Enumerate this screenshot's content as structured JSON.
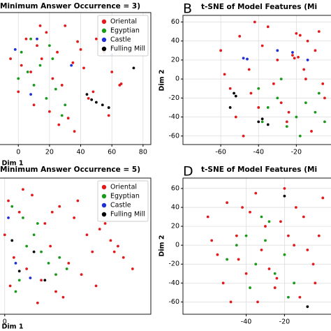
{
  "chart_data": [
    {
      "type": "scatter",
      "title": "Minimum Answer Occurrence = 3)",
      "xlabel": "Dim 1",
      "xlim": [
        -14,
        85
      ],
      "ylim": [
        -50,
        50
      ],
      "xticks": [
        0,
        20,
        40,
        60,
        80
      ],
      "yticks": [],
      "grid": true,
      "legend": "upper right",
      "series": [
        {
          "name": "Oriental",
          "color": "#e31a1c",
          "x": [
            5,
            12,
            18,
            25,
            30,
            38,
            2,
            8,
            15,
            22,
            28,
            35,
            42,
            48,
            55,
            60,
            10,
            20,
            32,
            45,
            50,
            -5,
            0,
            14,
            26,
            40,
            58,
            36,
            65,
            66
          ],
          "values": [
            30,
            25,
            35,
            20,
            40,
            28,
            10,
            5,
            15,
            0,
            -5,
            12,
            8,
            -10,
            20,
            5,
            -20,
            -25,
            -30,
            -15,
            30,
            15,
            -10,
            40,
            -35,
            22,
            -28,
            -40,
            -5,
            -4
          ]
        },
        {
          "name": "Egyptian",
          "color": "#1a9a1a",
          "x": [
            2,
            6,
            10,
            14,
            18,
            20,
            24,
            30,
            0,
            8,
            22,
            28
          ],
          "values": [
            20,
            5,
            -5,
            10,
            -15,
            25,
            -8,
            -20,
            0,
            30,
            15,
            -28
          ]
        },
        {
          "name": "Castle",
          "color": "#1f2fd6",
          "x": [
            -2,
            12,
            34,
            60,
            8
          ],
          "values": [
            22,
            30,
            10,
            18,
            -12
          ]
        },
        {
          "name": "Fulling Mill",
          "color": "#000000",
          "x": [
            44,
            47,
            50,
            54,
            58,
            74
          ],
          "values": [
            -12,
            -16,
            -18,
            -20,
            -22,
            8
          ]
        }
      ]
    },
    {
      "type": "scatter",
      "title": "t-SNE of Model Features (Mi",
      "panel_label": "B",
      "ylabel": "Dim 2",
      "xlim": [
        -80,
        5
      ],
      "ylim": [
        -69,
        67
      ],
      "xticks": [
        -60,
        -40,
        -20
      ],
      "yticks": [
        -60,
        -40,
        -20,
        0,
        20,
        40,
        60
      ],
      "grid": true,
      "series": [
        {
          "name": "Oriental",
          "color": "#e31a1c",
          "x": [
            -60,
            -55,
            -50,
            -45,
            -40,
            -35,
            -30,
            -25,
            -20,
            -18,
            -15,
            -10,
            -5,
            -52,
            -42,
            -32,
            -22,
            -12,
            -8,
            -48,
            -38,
            -28,
            -16,
            -6,
            -58,
            -44,
            -24,
            -14,
            -19,
            -21
          ],
          "values": [
            30,
            -10,
            45,
            10,
            -30,
            55,
            20,
            -45,
            48,
            46,
            0,
            30,
            -20,
            -40,
            60,
            -5,
            25,
            -55,
            50,
            -60,
            35,
            -25,
            10,
            -5,
            5,
            -15,
            -35,
            40,
            23,
            22
          ]
        },
        {
          "name": "Egyptian",
          "color": "#1a9a1a",
          "x": [
            -40,
            -35,
            -30,
            -25,
            -20,
            -15,
            -10,
            -5,
            -28,
            -18,
            -8,
            -38
          ],
          "values": [
            -10,
            -30,
            -20,
            -50,
            -40,
            -25,
            -35,
            -45,
            0,
            -60,
            -15,
            -45
          ]
        },
        {
          "name": "Castle",
          "color": "#1f2fd6",
          "x": [
            -48,
            -46,
            -30,
            -22,
            -14
          ],
          "values": [
            22,
            21,
            30,
            28,
            20
          ]
        },
        {
          "name": "Fulling Mill",
          "color": "#000000",
          "x": [
            -53,
            -52,
            -40,
            -38,
            -35,
            -55
          ],
          "values": [
            -15,
            -18,
            -45,
            -42,
            -48,
            -30
          ]
        }
      ]
    },
    {
      "type": "scatter",
      "title": "Minimum Answer Occurrence = 5)",
      "xlabel": "Dim 1",
      "xlim": [
        -4.5,
        80
      ],
      "ylim": [
        -60,
        60
      ],
      "xticks": [
        0
      ],
      "yticks": [],
      "grid": true,
      "legend": "upper right",
      "series": [
        {
          "name": "Oriental",
          "color": "#e31a1c",
          "x": [
            2,
            8,
            15,
            22,
            30,
            38,
            45,
            52,
            60,
            5,
            12,
            20,
            28,
            35,
            42,
            50,
            58,
            65,
            70,
            0,
            10,
            18,
            25,
            32,
            40,
            48,
            55,
            62,
            3,
            26
          ],
          "values": [
            40,
            30,
            45,
            20,
            35,
            25,
            10,
            15,
            -5,
            -10,
            -20,
            -30,
            -40,
            -15,
            -25,
            -35,
            5,
            -10,
            -20,
            10,
            50,
            -50,
            0,
            -45,
            40,
            -5,
            20,
            0,
            -35,
            30
          ]
        },
        {
          "name": "Egyptian",
          "color": "#1a9a1a",
          "x": [
            4,
            10,
            16,
            20,
            24,
            28,
            12,
            30,
            8,
            34,
            18,
            6
          ],
          "values": [
            35,
            25,
            10,
            -5,
            -15,
            -25,
            0,
            -10,
            -30,
            -20,
            20,
            -40
          ]
        },
        {
          "name": "Castle",
          "color": "#1f2fd6",
          "x": [
            2,
            6,
            14
          ],
          "values": [
            25,
            -15,
            -28
          ]
        },
        {
          "name": "Fulling Mill",
          "color": "#000000",
          "x": [
            4,
            8,
            22,
            16
          ],
          "values": [
            5,
            -22,
            -30,
            -5
          ]
        }
      ]
    },
    {
      "type": "scatter",
      "title": "t-SNE of Model Features (Mi",
      "panel_label": "D",
      "ylabel": "Dim 2",
      "xlim": [
        -73,
        5
      ],
      "ylim": [
        -73,
        71
      ],
      "xticks": [
        -40,
        -20
      ],
      "yticks": [
        -60,
        -40,
        -20,
        0,
        20,
        40,
        60
      ],
      "grid": true,
      "series": [
        {
          "name": "Oriental",
          "color": "#e31a1c",
          "x": [
            -60,
            -55,
            -50,
            -45,
            -40,
            -35,
            -30,
            -25,
            -20,
            -15,
            -10,
            -5,
            0,
            -52,
            -42,
            -32,
            -22,
            -12,
            -2,
            -48,
            -38,
            -28,
            -18,
            -8,
            -58,
            -44,
            -24,
            -14,
            -4,
            -34
          ],
          "values": [
            30,
            -10,
            45,
            10,
            -30,
            55,
            20,
            -45,
            60,
            0,
            30,
            -20,
            50,
            -40,
            40,
            -5,
            25,
            -55,
            10,
            -60,
            35,
            -25,
            10,
            -5,
            5,
            -15,
            -35,
            40,
            -40,
            -60
          ]
        },
        {
          "name": "Egyptian",
          "color": "#1a9a1a",
          "x": [
            -45,
            -40,
            -35,
            -30,
            -25,
            -20,
            -15,
            -50,
            -28,
            -18,
            -38,
            -32
          ],
          "values": [
            0,
            10,
            -20,
            5,
            -30,
            -10,
            -40,
            -15,
            25,
            -55,
            -45,
            30
          ]
        },
        {
          "name": "Fulling Mill",
          "color": "#000000",
          "x": [
            -20,
            -8
          ],
          "values": [
            52,
            -65
          ]
        }
      ]
    }
  ]
}
